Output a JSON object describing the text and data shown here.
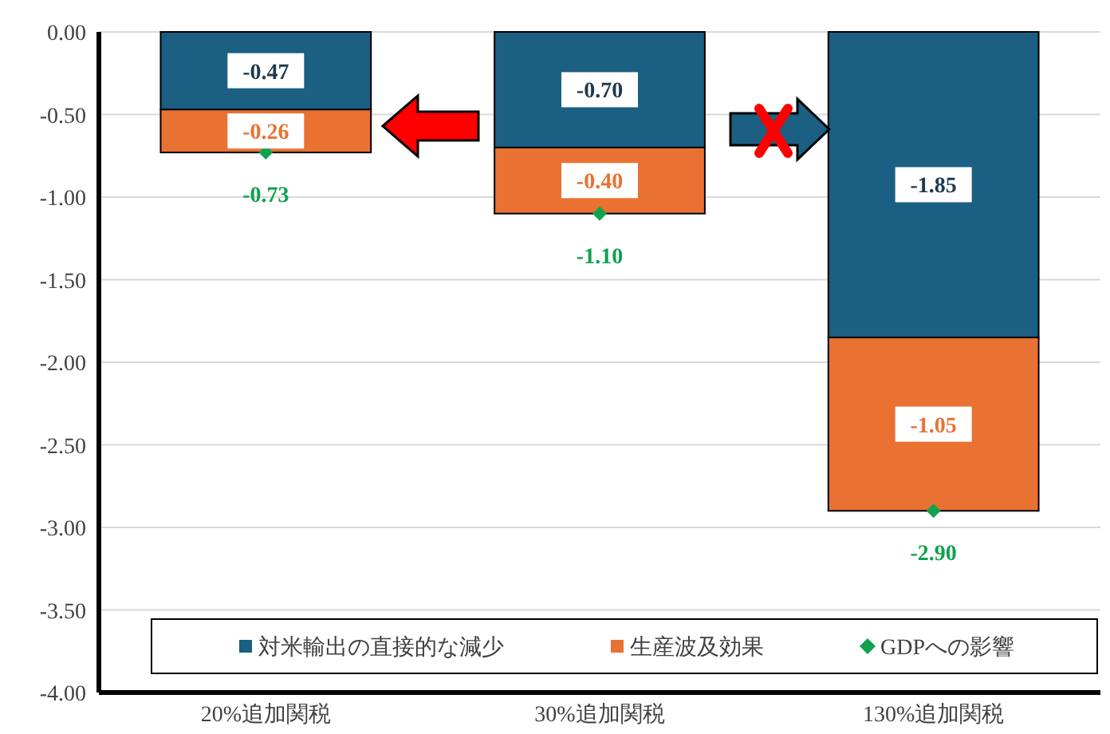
{
  "chart_data": {
    "type": "bar",
    "stacked": true,
    "categories": [
      "20%追加関税",
      "30%追加関税",
      "130%追加関税"
    ],
    "series": [
      {
        "name": "対米輸出の直接的な減少",
        "color": "#1b5f82",
        "values": [
          -0.47,
          -0.7,
          -1.85
        ],
        "value_labels": [
          "-0.47",
          "-0.70",
          "-1.85"
        ]
      },
      {
        "name": "生産波及効果",
        "color": "#e97132",
        "values": [
          -0.26,
          -0.4,
          -1.05
        ],
        "value_labels": [
          "-0.26",
          "-0.40",
          "-1.05"
        ]
      },
      {
        "name": "GDPへの影響",
        "type": "scatter",
        "marker": "diamond",
        "color": "#10a24f",
        "values": [
          -0.73,
          -1.1,
          -2.9
        ],
        "value_labels": [
          "-0.73",
          "-1.10",
          "-2.90"
        ]
      }
    ],
    "ylim": [
      -4,
      0
    ],
    "yticks": [
      {
        "value": 0,
        "label": "0.00"
      },
      {
        "value": -0.5,
        "label": "-0.50"
      },
      {
        "value": -1,
        "label": "-1.00"
      },
      {
        "value": -1.5,
        "label": "-1.50"
      },
      {
        "value": -2,
        "label": "-2.00"
      },
      {
        "value": -2.5,
        "label": "-2.50"
      },
      {
        "value": -3,
        "label": "-3.00"
      },
      {
        "value": -3.5,
        "label": "-3.50"
      },
      {
        "value": -4,
        "label": "-4.00"
      }
    ],
    "grid": "y",
    "legend": "bottom"
  }
}
